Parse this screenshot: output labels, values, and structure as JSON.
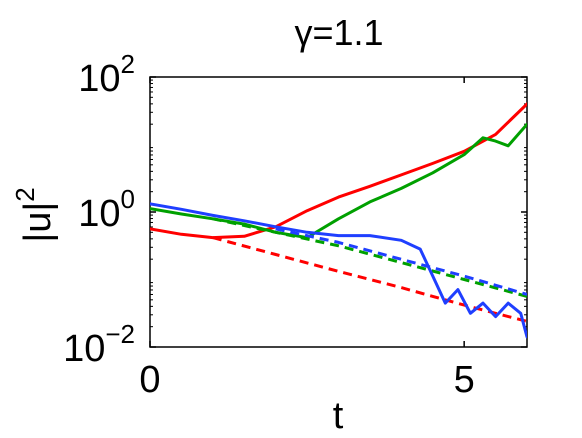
{
  "chart_data": {
    "type": "line",
    "title": "γ=1.1",
    "xlabel": "t",
    "ylabel": "|u|",
    "ylabel_sup": "2",
    "xlim": [
      0,
      6
    ],
    "ylim_log10": [
      -2,
      2
    ],
    "yscale": "log",
    "grid": false,
    "legend": "none",
    "xticks": [
      {
        "value": 0,
        "label": "0"
      },
      {
        "value": 5,
        "label": "5"
      }
    ],
    "yticks": [
      {
        "exp": -2,
        "base": "10",
        "sup": "−2"
      },
      {
        "exp": 0,
        "base": "10",
        "sup": "0"
      },
      {
        "exp": 2,
        "base": "10",
        "sup": "2"
      }
    ],
    "series": [
      {
        "color": "#ff0000",
        "dash": false,
        "log10_values": [
          [
            0,
            -0.25
          ],
          [
            0.5,
            -0.33
          ],
          [
            1,
            -0.38
          ],
          [
            1.5,
            -0.36
          ],
          [
            2,
            -0.22
          ],
          [
            2.5,
            0.02
          ],
          [
            3,
            0.22
          ],
          [
            3.5,
            0.38
          ],
          [
            4,
            0.55
          ],
          [
            4.5,
            0.72
          ],
          [
            5,
            0.9
          ],
          [
            5.5,
            1.15
          ],
          [
            6,
            1.6
          ]
        ]
      },
      {
        "color": "#ff0000",
        "dash": true,
        "log10_values": [
          [
            1,
            -0.38
          ],
          [
            2,
            -0.63
          ],
          [
            3,
            -0.88
          ],
          [
            4,
            -1.12
          ],
          [
            4.5,
            -1.25
          ],
          [
            5,
            -1.38
          ],
          [
            5.5,
            -1.5
          ],
          [
            6,
            -1.62
          ]
        ]
      },
      {
        "color": "#00a000",
        "dash": false,
        "log10_values": [
          [
            0,
            0.05
          ],
          [
            0.5,
            -0.03
          ],
          [
            1,
            -0.1
          ],
          [
            1.5,
            -0.18
          ],
          [
            2,
            -0.3
          ],
          [
            2.5,
            -0.38
          ],
          [
            3,
            -0.1
          ],
          [
            3.5,
            0.15
          ],
          [
            4,
            0.35
          ],
          [
            4.5,
            0.58
          ],
          [
            5,
            0.85
          ],
          [
            5.3,
            1.1
          ],
          [
            5.5,
            1.05
          ],
          [
            5.7,
            0.98
          ],
          [
            6,
            1.3
          ]
        ]
      },
      {
        "color": "#00a000",
        "dash": true,
        "log10_values": [
          [
            1,
            -0.1
          ],
          [
            2,
            -0.3
          ],
          [
            3,
            -0.5
          ],
          [
            4,
            -0.75
          ],
          [
            5,
            -1.0
          ],
          [
            6,
            -1.25
          ]
        ]
      },
      {
        "color": "#1f3fff",
        "dash": false,
        "log10_values": [
          [
            0,
            0.12
          ],
          [
            0.5,
            0.04
          ],
          [
            1,
            -0.05
          ],
          [
            1.5,
            -0.13
          ],
          [
            2,
            -0.22
          ],
          [
            2.5,
            -0.3
          ],
          [
            3,
            -0.35
          ],
          [
            3.5,
            -0.35
          ],
          [
            4,
            -0.42
          ],
          [
            4.3,
            -0.55
          ],
          [
            4.5,
            -0.95
          ],
          [
            4.7,
            -1.35
          ],
          [
            4.9,
            -1.15
          ],
          [
            5.1,
            -1.5
          ],
          [
            5.3,
            -1.35
          ],
          [
            5.5,
            -1.55
          ],
          [
            5.7,
            -1.35
          ],
          [
            5.9,
            -1.5
          ],
          [
            6,
            -1.85
          ]
        ]
      },
      {
        "color": "#1f3fff",
        "dash": true,
        "log10_values": [
          [
            2,
            -0.25
          ],
          [
            3,
            -0.45
          ],
          [
            4,
            -0.7
          ],
          [
            5,
            -0.95
          ],
          [
            6,
            -1.22
          ]
        ]
      }
    ]
  }
}
